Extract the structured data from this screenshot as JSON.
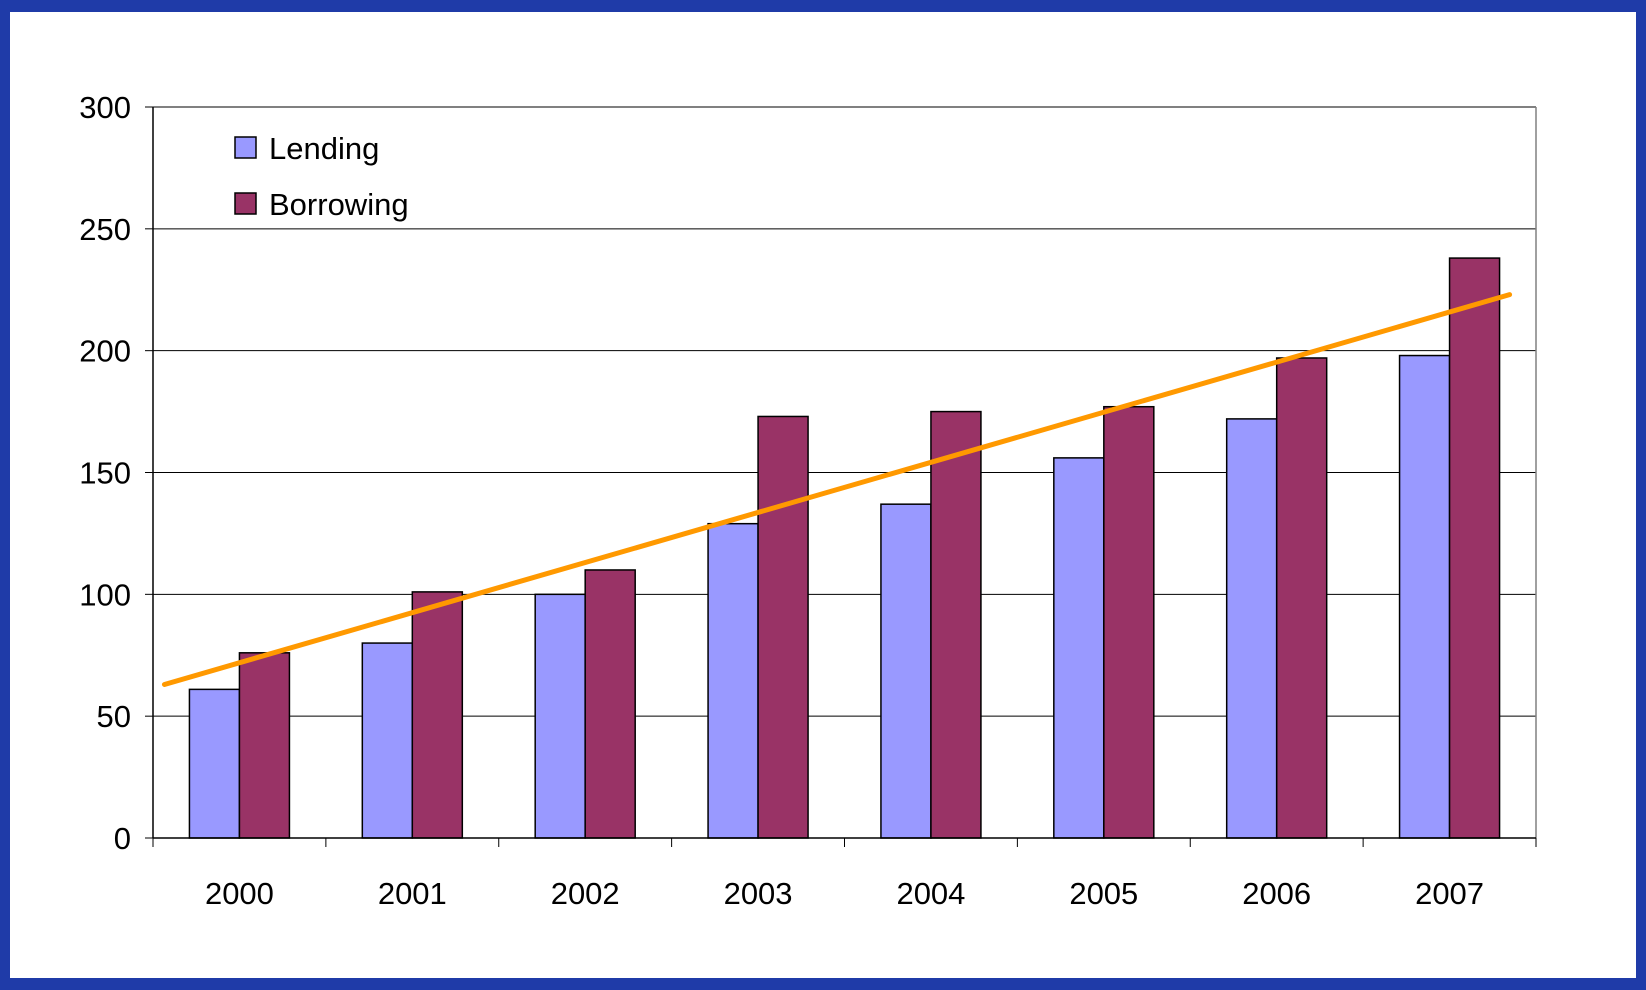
{
  "chart_data": {
    "type": "bar",
    "categories": [
      "2000",
      "2001",
      "2002",
      "2003",
      "2004",
      "2005",
      "2006",
      "2007"
    ],
    "series": [
      {
        "name": "Lending",
        "values": [
          61,
          80,
          100,
          129,
          137,
          156,
          172,
          198
        ]
      },
      {
        "name": "Borrowing",
        "values": [
          76,
          101,
          110,
          173,
          175,
          177,
          197,
          238
        ]
      }
    ],
    "trendline": {
      "x": [
        "2000",
        "2007"
      ],
      "y": [
        63,
        223
      ]
    },
    "ylim": [
      0,
      300
    ],
    "yticks": [
      "0",
      "50",
      "100",
      "150",
      "200",
      "250",
      "300"
    ],
    "grid": true,
    "legend_position": "top-left",
    "colors": {
      "Lending": "#9999ff",
      "Borrowing": "#993366",
      "trendline": "#ff9900",
      "background": "#1f3ba8"
    }
  }
}
